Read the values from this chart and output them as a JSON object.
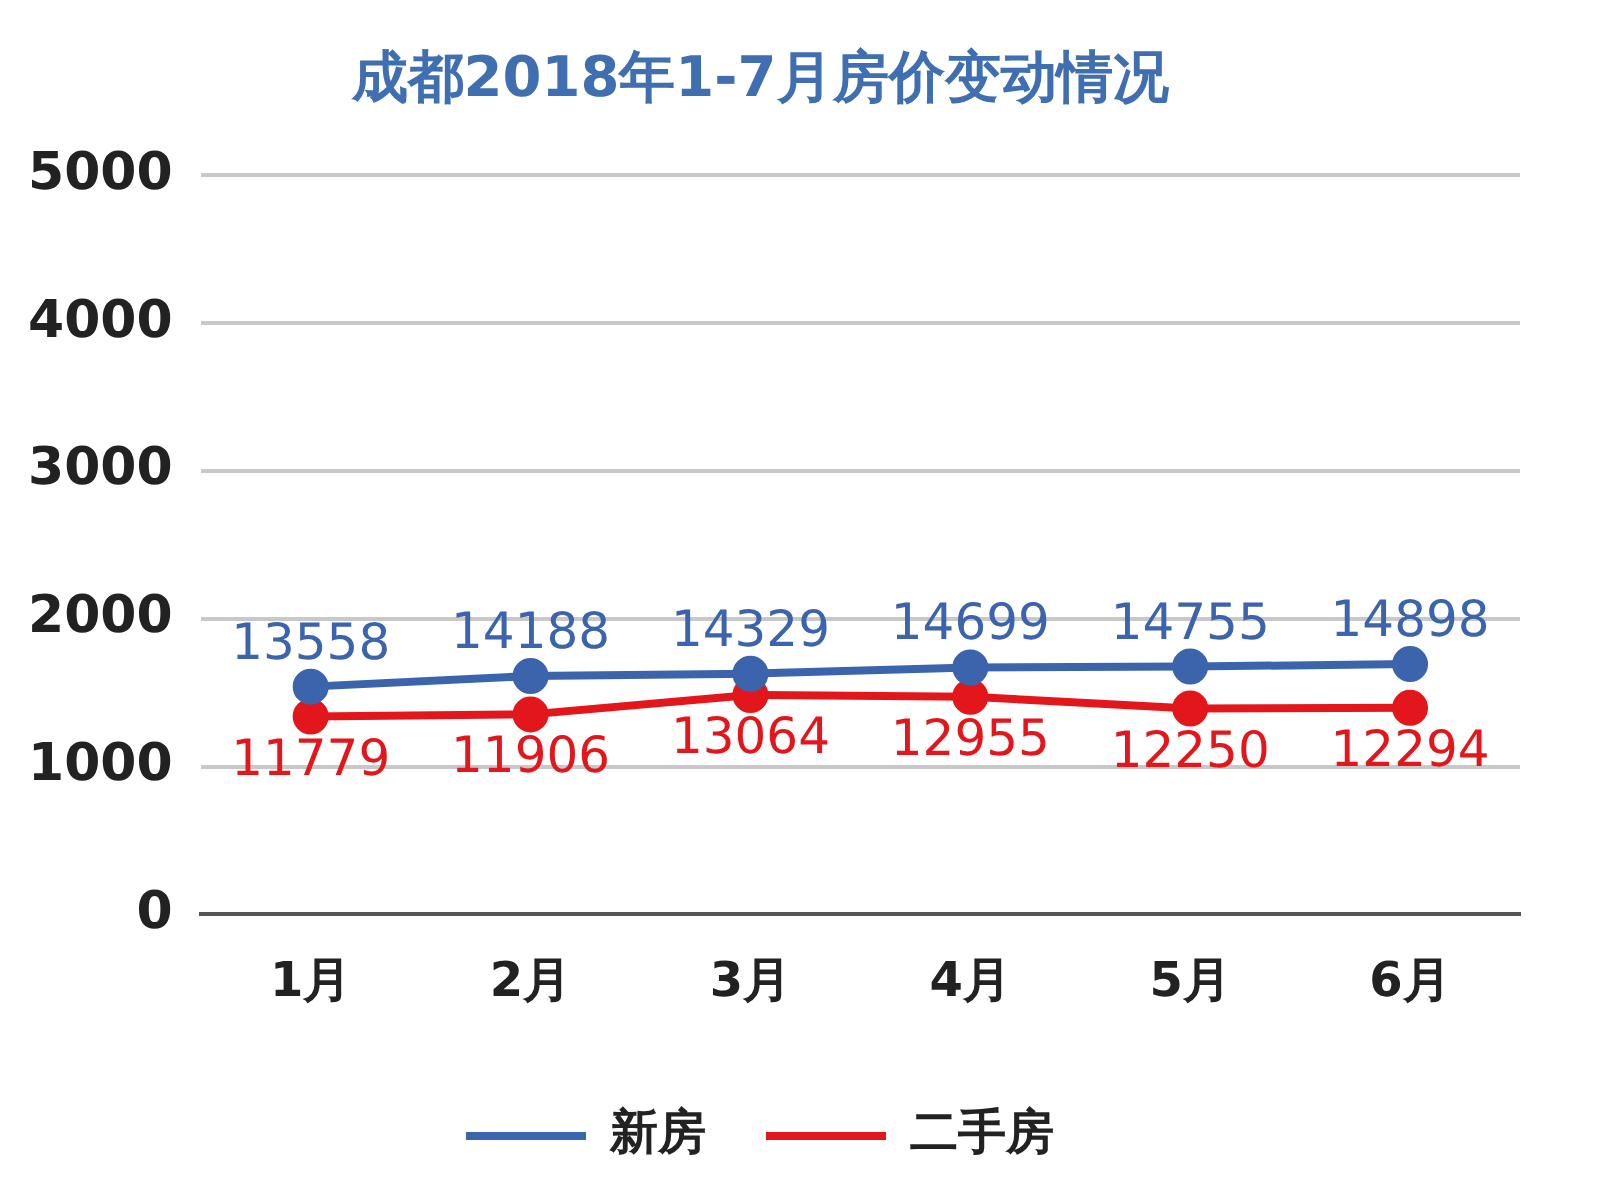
{
  "chart_data": {
    "type": "line",
    "title": "成都2018年1-7月房价变动情况",
    "categories": [
      "1月",
      "2月",
      "3月",
      "4月",
      "5月",
      "6月"
    ],
    "series": [
      {
        "name": "新房",
        "color": "#3b64ad",
        "values": [
          13558,
          14188,
          14329,
          14699,
          14755,
          14898
        ]
      },
      {
        "name": "二手房",
        "color": "#e3161c",
        "values": [
          11779,
          11906,
          13064,
          12955,
          12250,
          12294
        ]
      }
    ],
    "data_labels": true,
    "ylim": [
      0,
      44000
    ],
    "y2lim": [
      0,
      5000
    ],
    "y2ticks": [
      0,
      1000,
      2000,
      3000,
      4000,
      5000
    ],
    "grid": "y",
    "legend": "bottom",
    "marker": "circle"
  }
}
